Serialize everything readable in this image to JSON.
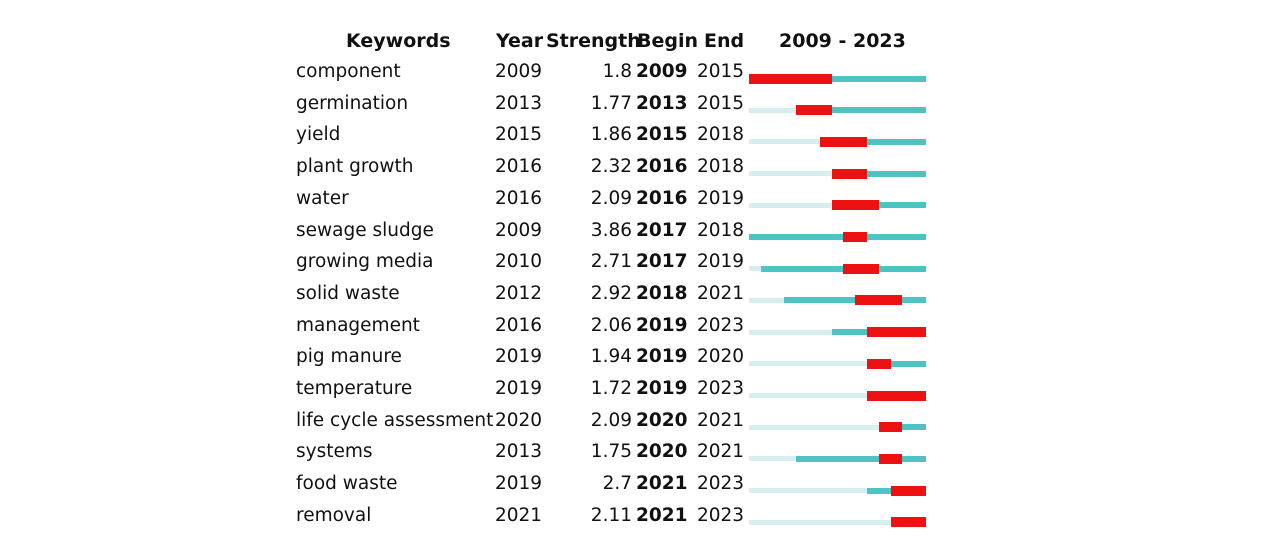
{
  "headers": {
    "keywords": "Keywords",
    "year": "Year",
    "strength": "Strength",
    "begin": "Begin",
    "end": "End",
    "range": "2009 - 2023"
  },
  "colors": {
    "inactive": "#d6eef0",
    "active": "#4fc2c4",
    "burst": "#ee1111"
  },
  "chart_data": {
    "type": "table",
    "range_start": 2009,
    "range_end": 2023,
    "rows": [
      {
        "keyword": "component",
        "year": "2009",
        "strength": "1.8",
        "begin": "2009",
        "end": "2015"
      },
      {
        "keyword": "germination",
        "year": "2013",
        "strength": "1.77",
        "begin": "2013",
        "end": "2015"
      },
      {
        "keyword": "yield",
        "year": "2015",
        "strength": "1.86",
        "begin": "2015",
        "end": "2018"
      },
      {
        "keyword": "plant growth",
        "year": "2016",
        "strength": "2.32",
        "begin": "2016",
        "end": "2018"
      },
      {
        "keyword": "water",
        "year": "2016",
        "strength": "2.09",
        "begin": "2016",
        "end": "2019"
      },
      {
        "keyword": "sewage sludge",
        "year": "2009",
        "strength": "3.86",
        "begin": "2017",
        "end": "2018"
      },
      {
        "keyword": "growing media",
        "year": "2010",
        "strength": "2.71",
        "begin": "2017",
        "end": "2019"
      },
      {
        "keyword": "solid waste",
        "year": "2012",
        "strength": "2.92",
        "begin": "2018",
        "end": "2021"
      },
      {
        "keyword": "management",
        "year": "2016",
        "strength": "2.06",
        "begin": "2019",
        "end": "2023"
      },
      {
        "keyword": "pig manure",
        "year": "2019",
        "strength": "1.94",
        "begin": "2019",
        "end": "2020"
      },
      {
        "keyword": "temperature",
        "year": "2019",
        "strength": "1.72",
        "begin": "2019",
        "end": "2023"
      },
      {
        "keyword": "life cycle assessment",
        "year": "2020",
        "strength": "2.09",
        "begin": "2020",
        "end": "2021"
      },
      {
        "keyword": "systems",
        "year": "2013",
        "strength": "1.75",
        "begin": "2020",
        "end": "2021"
      },
      {
        "keyword": "food waste",
        "year": "2019",
        "strength": "2.7",
        "begin": "2021",
        "end": "2023"
      },
      {
        "keyword": "removal",
        "year": "2021",
        "strength": "2.11",
        "begin": "2021",
        "end": "2023"
      }
    ]
  }
}
